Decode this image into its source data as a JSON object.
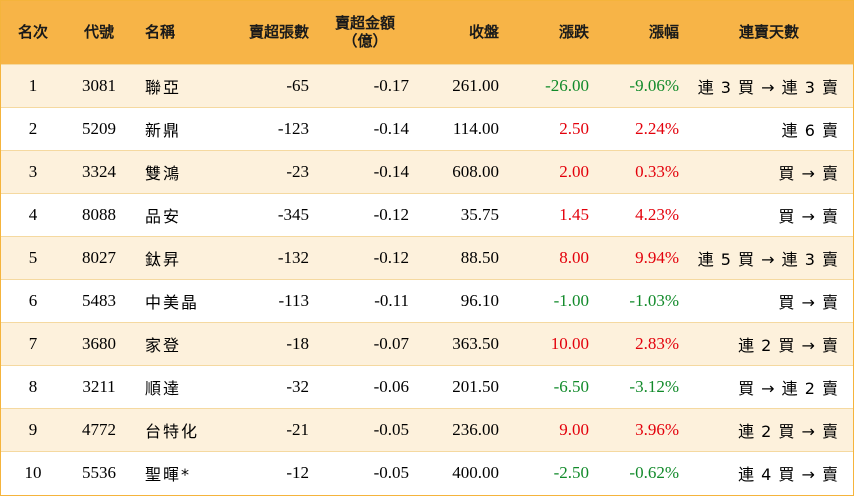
{
  "headers": {
    "rank": "名次",
    "code": "代號",
    "name": "名稱",
    "lots": "賣超張數",
    "amount_line1": "賣超金額",
    "amount_line2": "（億）",
    "close": "收盤",
    "change": "漲跌",
    "pct": "漲幅",
    "days": "連賣天數"
  },
  "colors": {
    "header_bg": "#f7b447",
    "row_alt_bg": "#fdf1dc",
    "up": "#e3000b",
    "down": "#118a2a"
  },
  "rows": [
    {
      "rank": "1",
      "code": "3081",
      "name": "聯亞",
      "lots": "-65",
      "amount": "-0.17",
      "close": "261.00",
      "change": "-26.00",
      "pct": "-9.06%",
      "days": "連 3 買 → 連 3 賣",
      "trend": "down"
    },
    {
      "rank": "2",
      "code": "5209",
      "name": "新鼎",
      "lots": "-123",
      "amount": "-0.14",
      "close": "114.00",
      "change": "2.50",
      "pct": "2.24%",
      "days": "連 6 賣",
      "trend": "up"
    },
    {
      "rank": "3",
      "code": "3324",
      "name": "雙鴻",
      "lots": "-23",
      "amount": "-0.14",
      "close": "608.00",
      "change": "2.00",
      "pct": "0.33%",
      "days": "買 → 賣",
      "trend": "up"
    },
    {
      "rank": "4",
      "code": "8088",
      "name": "品安",
      "lots": "-345",
      "amount": "-0.12",
      "close": "35.75",
      "change": "1.45",
      "pct": "4.23%",
      "days": "買 → 賣",
      "trend": "up"
    },
    {
      "rank": "5",
      "code": "8027",
      "name": "鈦昇",
      "lots": "-132",
      "amount": "-0.12",
      "close": "88.50",
      "change": "8.00",
      "pct": "9.94%",
      "days": "連 5 買 → 連 3 賣",
      "trend": "up"
    },
    {
      "rank": "6",
      "code": "5483",
      "name": "中美晶",
      "lots": "-113",
      "amount": "-0.11",
      "close": "96.10",
      "change": "-1.00",
      "pct": "-1.03%",
      "days": "買 → 賣",
      "trend": "down"
    },
    {
      "rank": "7",
      "code": "3680",
      "name": "家登",
      "lots": "-18",
      "amount": "-0.07",
      "close": "363.50",
      "change": "10.00",
      "pct": "2.83%",
      "days": "連 2 買 → 賣",
      "trend": "up"
    },
    {
      "rank": "8",
      "code": "3211",
      "name": "順達",
      "lots": "-32",
      "amount": "-0.06",
      "close": "201.50",
      "change": "-6.50",
      "pct": "-3.12%",
      "days": "買 → 連 2 賣",
      "trend": "down"
    },
    {
      "rank": "9",
      "code": "4772",
      "name": "台特化",
      "lots": "-21",
      "amount": "-0.05",
      "close": "236.00",
      "change": "9.00",
      "pct": "3.96%",
      "days": "連 2 買 → 賣",
      "trend": "up"
    },
    {
      "rank": "10",
      "code": "5536",
      "name": "聖暉*",
      "lots": "-12",
      "amount": "-0.05",
      "close": "400.00",
      "change": "-2.50",
      "pct": "-0.62%",
      "days": "連 4 買 → 賣",
      "trend": "down"
    }
  ]
}
